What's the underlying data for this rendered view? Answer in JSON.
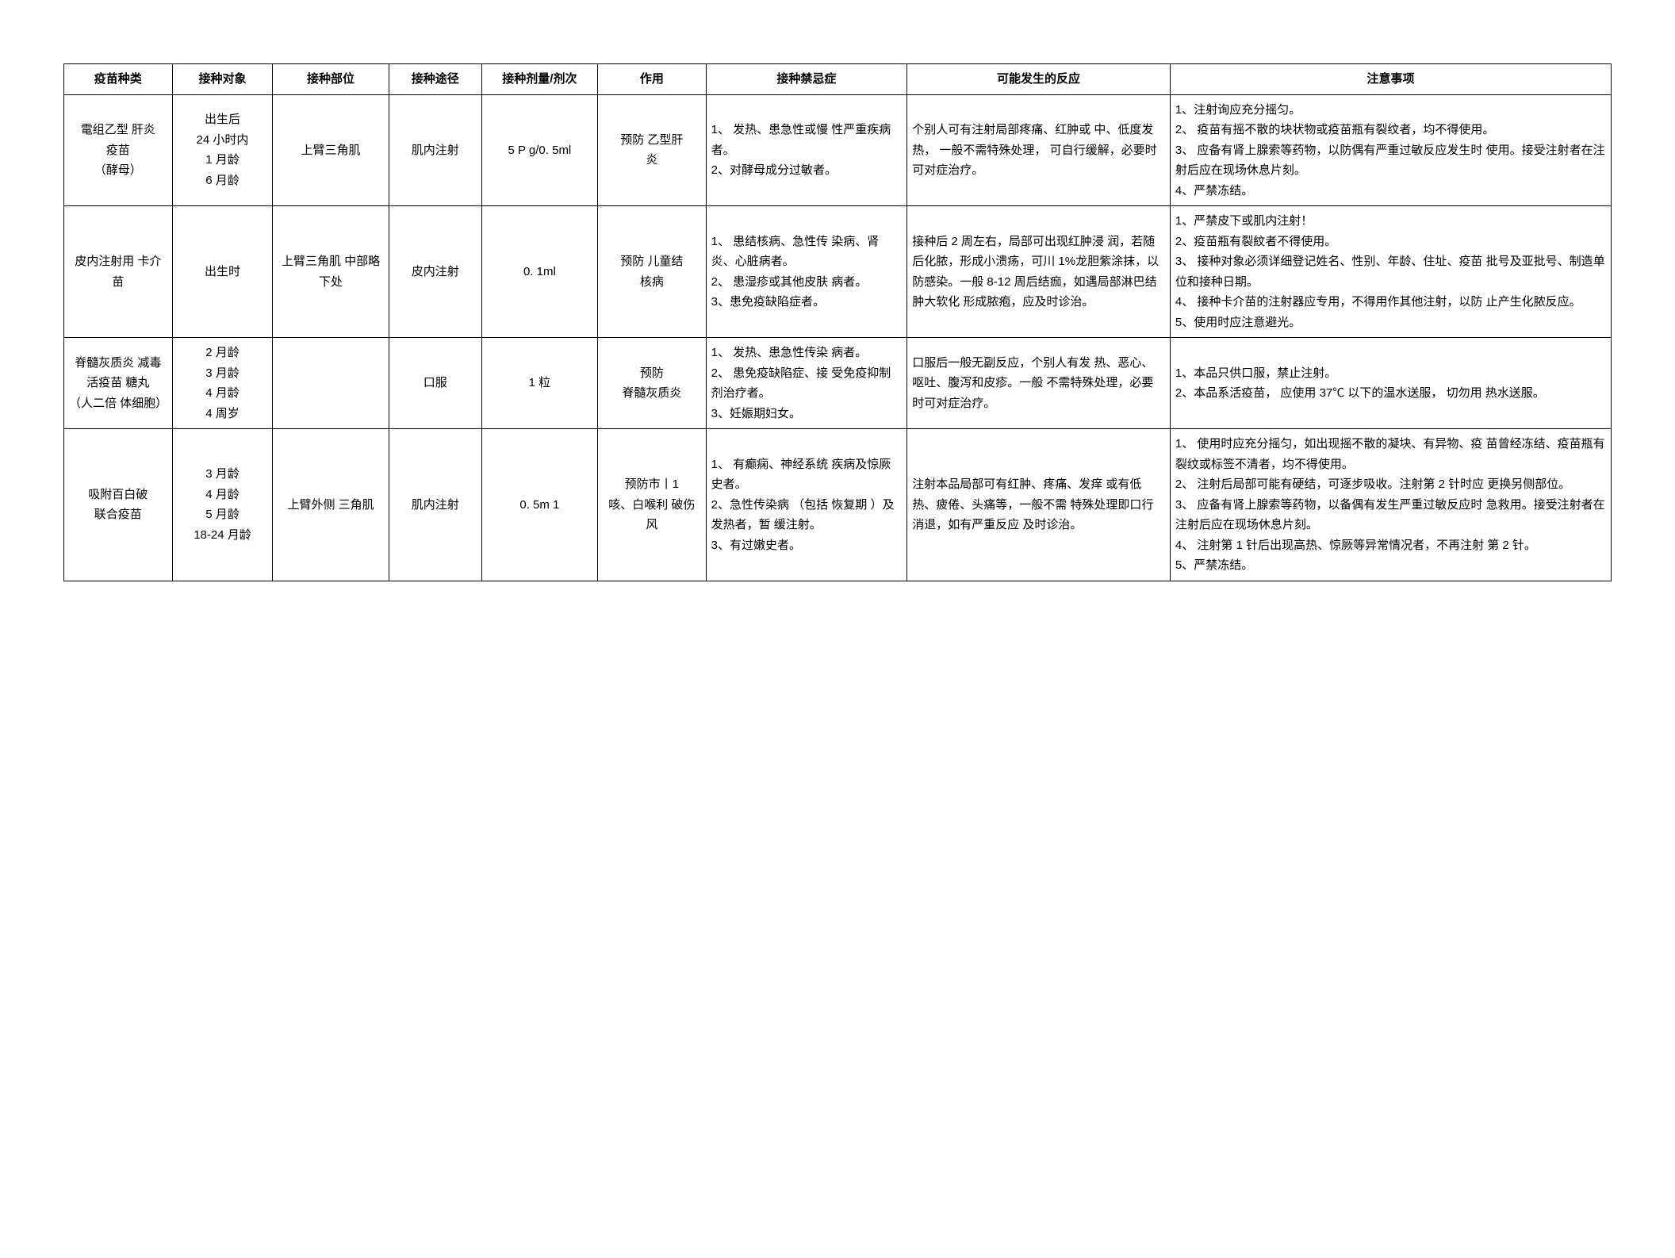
{
  "table": {
    "border_color": "#000000",
    "background_color": "#ffffff",
    "text_color": "#000000",
    "font_size_pt": 11,
    "columns": [
      {
        "key": "type",
        "label": "疫苗种类",
        "width_pct": 7,
        "align": "center"
      },
      {
        "key": "subject",
        "label": "接种对象",
        "width_pct": 6.5,
        "align": "center"
      },
      {
        "key": "site",
        "label": "接种部位",
        "width_pct": 7.5,
        "align": "center"
      },
      {
        "key": "route",
        "label": "接种途径",
        "width_pct": 6,
        "align": "center"
      },
      {
        "key": "dose",
        "label": "接种剂量/剂次",
        "width_pct": 7.5,
        "align": "center"
      },
      {
        "key": "effect",
        "label": "作用",
        "width_pct": 7,
        "align": "center"
      },
      {
        "key": "contraind",
        "label": "接种禁忌症",
        "width_pct": 13,
        "align": "center"
      },
      {
        "key": "reaction",
        "label": "可能发生的反应",
        "width_pct": 17,
        "align": "center"
      },
      {
        "key": "notes",
        "label": "注意事项",
        "width_pct": 28.5,
        "align": "center"
      }
    ],
    "rows": [
      {
        "type": "電组乙型 肝炎\n疫苗\n（酵母）",
        "subject": "出生后\n24 小时内\n1 月龄\n6 月龄",
        "site": "上臂三角肌",
        "route": "肌内注射",
        "dose": "5 P g/0. 5ml",
        "effect": "预防 乙型肝\n炎",
        "contraind": "1、 发热、患急性或慢 性严重疾病者。\n2、对酵母成分过敏者。",
        "reaction": "个别人可有注射局部疼痛、红肿或 中、低度发热， 一般不需特殊处理，  可自行缓解，必要时可对症治疗。",
        "notes": "1、注射询应充分摇匀。\n2、 疫苗有摇不散的块状物或疫苗瓶有裂纹者，均不得使用。\n3、 应备有肾上腺索等药物，以防偶有严重过敏反应发生时 使用。接受注射者在注射后应在现场休息片刻。\n4、严禁冻结。"
      },
      {
        "type": "皮内注射用 卡介苗",
        "subject": "出生时",
        "site": "上臂三角肌 中部略下处",
        "route": "皮内注射",
        "dose": "0. 1ml",
        "effect": "预防 儿童结\n核病",
        "contraind": "1、 患结核病、急性传 染病、肾炎、心脏病者。\n2、 患湿疹或其他皮肤 病者。\n3、患免疫缺陷症者。",
        "reaction": "接种后 2 周左右，局部可出现红肿浸 润，若随后化脓，形成小溃疡，可川 1%龙胆紫涂抹，以防感染。一般 8-12 周后结痂，如遇局部淋巴结肿大软化 形成脓疱，应及时诊治。",
        "notes": "1、严禁皮下或肌内注射！\n2、疫苗瓶有裂紋者不得使用。\n3、 接种对象必须详细登记姓名、性别、年龄、住址、疫苗 批号及亚批号、制造单位和接种日期。\n4、 接种卡介苗的注射器应专用，不得用作其他注射，以防 止产生化脓反应。\n5、使用时应注意避光。"
      },
      {
        "type": "脊髓灰质炎 减毒活疫苗 糖丸\n（人二倍 体细胞）",
        "subject": "2 月龄\n3 月龄\n4 月龄\n4 周岁",
        "site": "",
        "route": "口服",
        "dose": "1 粒",
        "effect": "预防\n脊髓灰质炎",
        "contraind": "1、 发热、患急性传染 病者。\n2、 患免疫缺陷症、接 受免疫抑制剂治疗者。\n3、妊娠期妇女。",
        "reaction": "口服后一般无副反应，个别人有发 热、恶心、呕吐、腹泻和皮疹。一般 不需特殊处理，必要时可对症治疗。",
        "notes": "1、本品只供口服，禁止注射。\n2、本品系活疫苗， 应使用 37℃ 以下的温水送服， 切勿用 热水送服。"
      },
      {
        "type": "吸附百白破\n联合疫苗",
        "subject": "3 月龄\n4 月龄\n5 月龄\n18-24 月龄",
        "site": "上臂外侧 三角肌",
        "route": "肌内注射",
        "dose": "0. 5m 1",
        "effect": "预防市丨1\n咳、白喉利 破伤风",
        "contraind": "1、 有癫痫、神经系统 疾病及惊厥史者。\n2、急性传染病 （包括 恢复期 ）及发热者，暂 缓注射。\n3、有过嫩史者。",
        "reaction": "注射本品局部可有红肿、疼痛、发痒 或有低热、疲倦、头痛等，一般不需 特殊处理即口行消退，如有严重反应 及时诊治。",
        "notes": "1、 使用时应充分摇匀，如出现摇不散的凝块、有异物、疫 苗曾经冻结、疫苗瓶有裂纹或标签不清者，均不得使用。\n2、 注射后局部可能有硬结，可逐步吸收。注射第 2 针时应 更换另侧部位。\n3、 应备有肾上腺索等药物，以备偶有发生严重过敏反应时 急救用。接受注射者在注射后应在现场休息片刻。\n4、 注射第 1 针后出现高热、惊厥等异常情况者，不再注射 第 2 针。\n5、严禁冻结。"
      }
    ]
  }
}
